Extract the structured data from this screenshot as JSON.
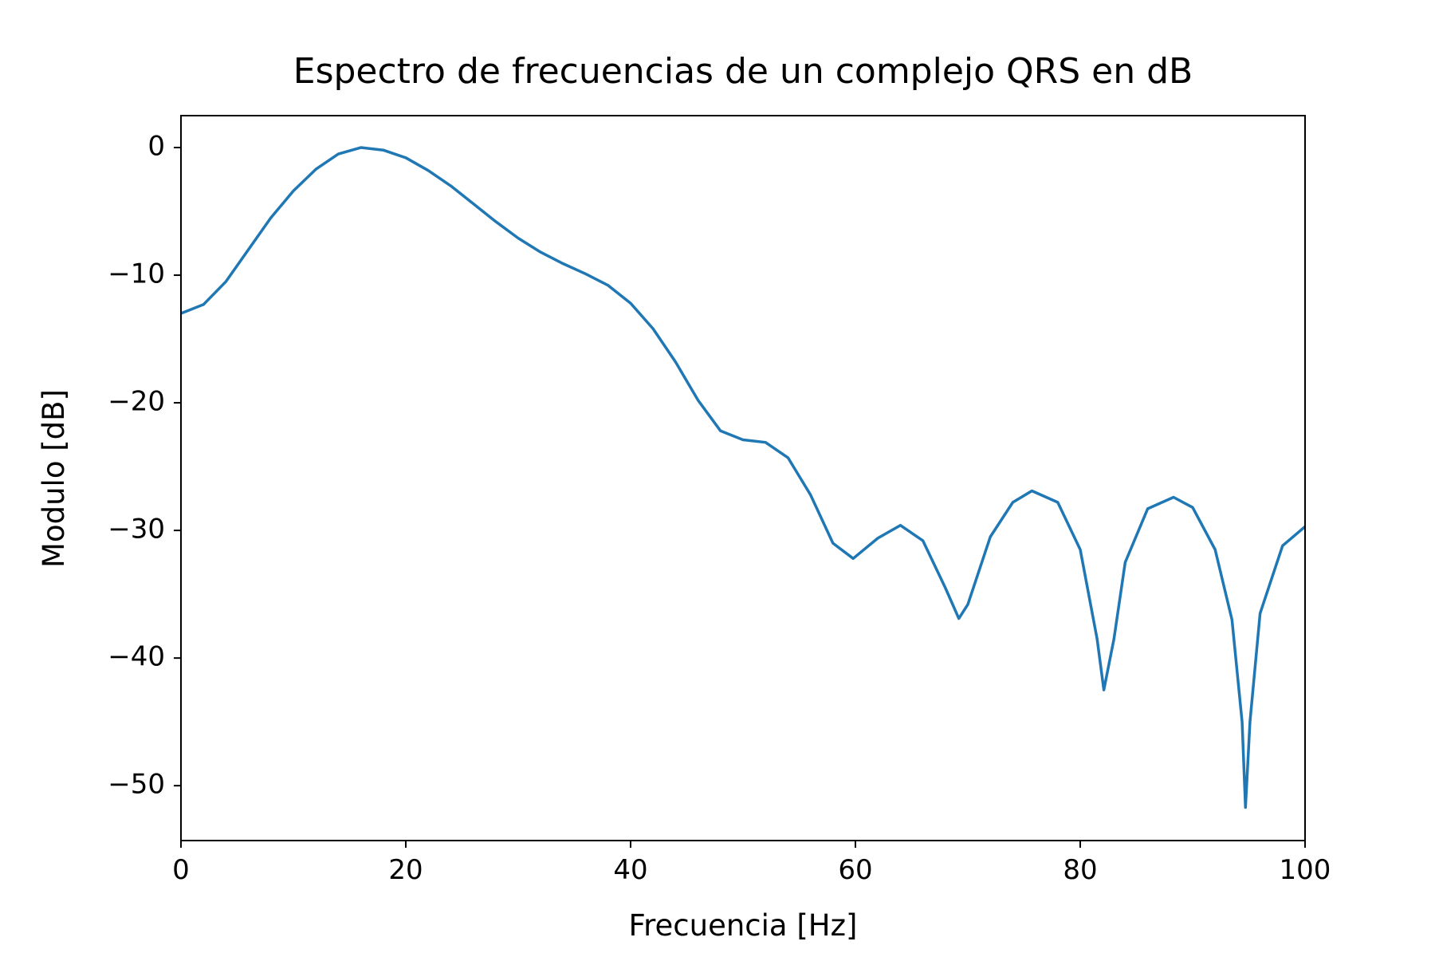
{
  "chart_data": {
    "type": "line",
    "title": "Espectro de frecuencias de un complejo QRS en dB",
    "xlabel": "Frecuencia [Hz]",
    "ylabel": "Modulo [dB]",
    "x": [
      0,
      2,
      4,
      6,
      8,
      10,
      12,
      14,
      16,
      18,
      20,
      22,
      24,
      26,
      28,
      30,
      32,
      34,
      36,
      38,
      40,
      42,
      44,
      46,
      48,
      50,
      52,
      54,
      56,
      58,
      59.8,
      62,
      64,
      66,
      68,
      69.2,
      70,
      72,
      74,
      75.7,
      78,
      80,
      81.5,
      82.1,
      83,
      84,
      86,
      88.3,
      90,
      92,
      93.5,
      94.4,
      94.7,
      95.1,
      96,
      98,
      100
    ],
    "series": [
      {
        "color": "#1f77b4",
        "values": [
          -13,
          -12.3,
          -10.5,
          -8,
          -5.5,
          -3.4,
          -1.7,
          -0.5,
          0,
          -0.2,
          -0.8,
          -1.8,
          -3,
          -4.4,
          -5.8,
          -7.1,
          -8.2,
          -9.1,
          -9.9,
          -10.8,
          -12.2,
          -14.2,
          -16.8,
          -19.8,
          -22.2,
          -22.9,
          -23.1,
          -24.3,
          -27.2,
          -31,
          -32.2,
          -30.6,
          -29.6,
          -30.8,
          -34.5,
          -36.9,
          -35.8,
          -30.5,
          -27.8,
          -26.9,
          -27.8,
          -31.5,
          -38.5,
          -42.5,
          -38.5,
          -32.5,
          -28.3,
          -27.4,
          -28.2,
          -31.5,
          -37,
          -45,
          -51.7,
          -45,
          -36.5,
          -31.2,
          -29.7
        ]
      }
    ],
    "xlim": [
      0,
      100
    ],
    "xticks": [
      0,
      20,
      40,
      60,
      80,
      100
    ],
    "ylim": [
      -54.3,
      2.5
    ],
    "yticks": [
      {
        "value": -50,
        "label": "−50"
      },
      {
        "value": -40,
        "label": "−40"
      },
      {
        "value": -30,
        "label": "−30"
      },
      {
        "value": -20,
        "label": "−20"
      },
      {
        "value": -10,
        "label": "−10"
      },
      0
    ],
    "grid": false
  }
}
